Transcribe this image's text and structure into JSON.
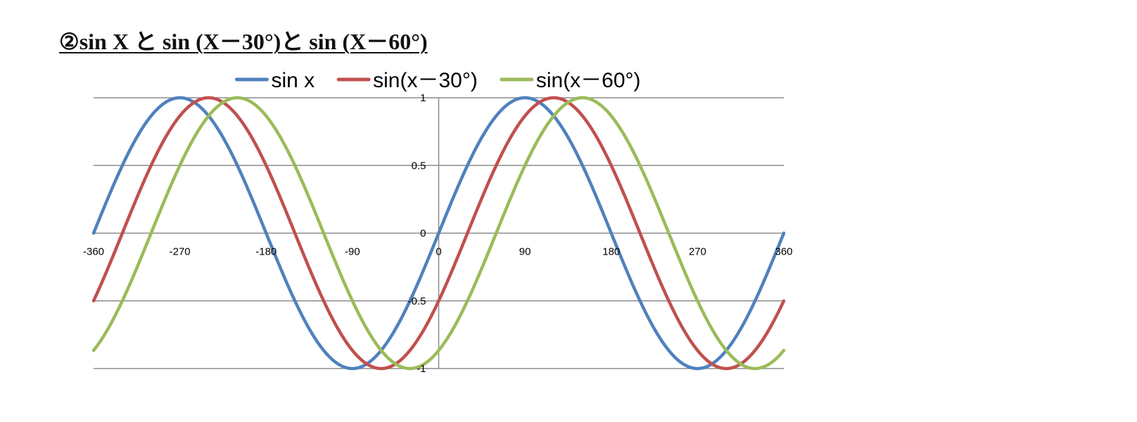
{
  "page": {
    "title": "②sin X と sin (X－30°)と sin (X－60°)"
  },
  "chart_data": {
    "type": "line",
    "title": "",
    "xlabel": "",
    "ylabel": "",
    "xlim": [
      -360,
      360
    ],
    "ylim": [
      -1,
      1
    ],
    "x_ticks": [
      -360,
      -270,
      -180,
      -90,
      0,
      90,
      180,
      270,
      360
    ],
    "x_tick_labels": [
      "-360",
      "-270",
      "-180",
      "-90",
      "0",
      "90",
      "180",
      "270",
      "360"
    ],
    "y_ticks": [
      -1,
      -0.5,
      0,
      0.5,
      1
    ],
    "y_tick_labels": [
      "-1",
      "-0.5",
      "0",
      "0.5",
      "1"
    ],
    "grid": "horizontal",
    "legend_position": "top",
    "series": [
      {
        "name": "sin x",
        "color": "#4F81BD",
        "function": "sine",
        "phase_shift_deg": 0,
        "x": [
          -360,
          -330,
          -300,
          -270,
          -240,
          -210,
          -180,
          -150,
          -120,
          -90,
          -60,
          -30,
          0,
          30,
          60,
          90,
          120,
          150,
          180,
          210,
          240,
          270,
          300,
          330,
          360
        ],
        "values": [
          0,
          0.5,
          0.866,
          1,
          0.866,
          0.5,
          0,
          -0.5,
          -0.866,
          -1,
          -0.866,
          -0.5,
          0,
          0.5,
          0.866,
          1,
          0.866,
          0.5,
          0,
          -0.5,
          -0.866,
          -1,
          -0.866,
          -0.5,
          0
        ]
      },
      {
        "name": "sin(x－30°)",
        "color": "#C0504D",
        "function": "sine",
        "phase_shift_deg": 30,
        "x": [
          -360,
          -330,
          -300,
          -270,
          -240,
          -210,
          -180,
          -150,
          -120,
          -90,
          -60,
          -30,
          0,
          30,
          60,
          90,
          120,
          150,
          180,
          210,
          240,
          270,
          300,
          330,
          360
        ],
        "values": [
          -0.5,
          0,
          0.5,
          0.866,
          1,
          0.866,
          0.5,
          0,
          -0.5,
          -0.866,
          -1,
          -0.866,
          -0.5,
          0,
          0.5,
          0.866,
          1,
          0.866,
          0.5,
          0,
          -0.5,
          -0.866,
          -1,
          -0.866,
          -0.5
        ]
      },
      {
        "name": "sin(x－60°)",
        "color": "#9BBB59",
        "function": "sine",
        "phase_shift_deg": 60,
        "x": [
          -360,
          -330,
          -300,
          -270,
          -240,
          -210,
          -180,
          -150,
          -120,
          -90,
          -60,
          -30,
          0,
          30,
          60,
          90,
          120,
          150,
          180,
          210,
          240,
          270,
          300,
          330,
          360
        ],
        "values": [
          -0.866,
          -0.5,
          0,
          0.5,
          0.866,
          1,
          0.866,
          0.5,
          0,
          -0.5,
          -0.866,
          -1,
          -0.866,
          -0.5,
          0,
          0.5,
          0.866,
          1,
          0.866,
          0.5,
          0,
          -0.5,
          -0.866,
          -1,
          -0.866
        ]
      }
    ]
  }
}
